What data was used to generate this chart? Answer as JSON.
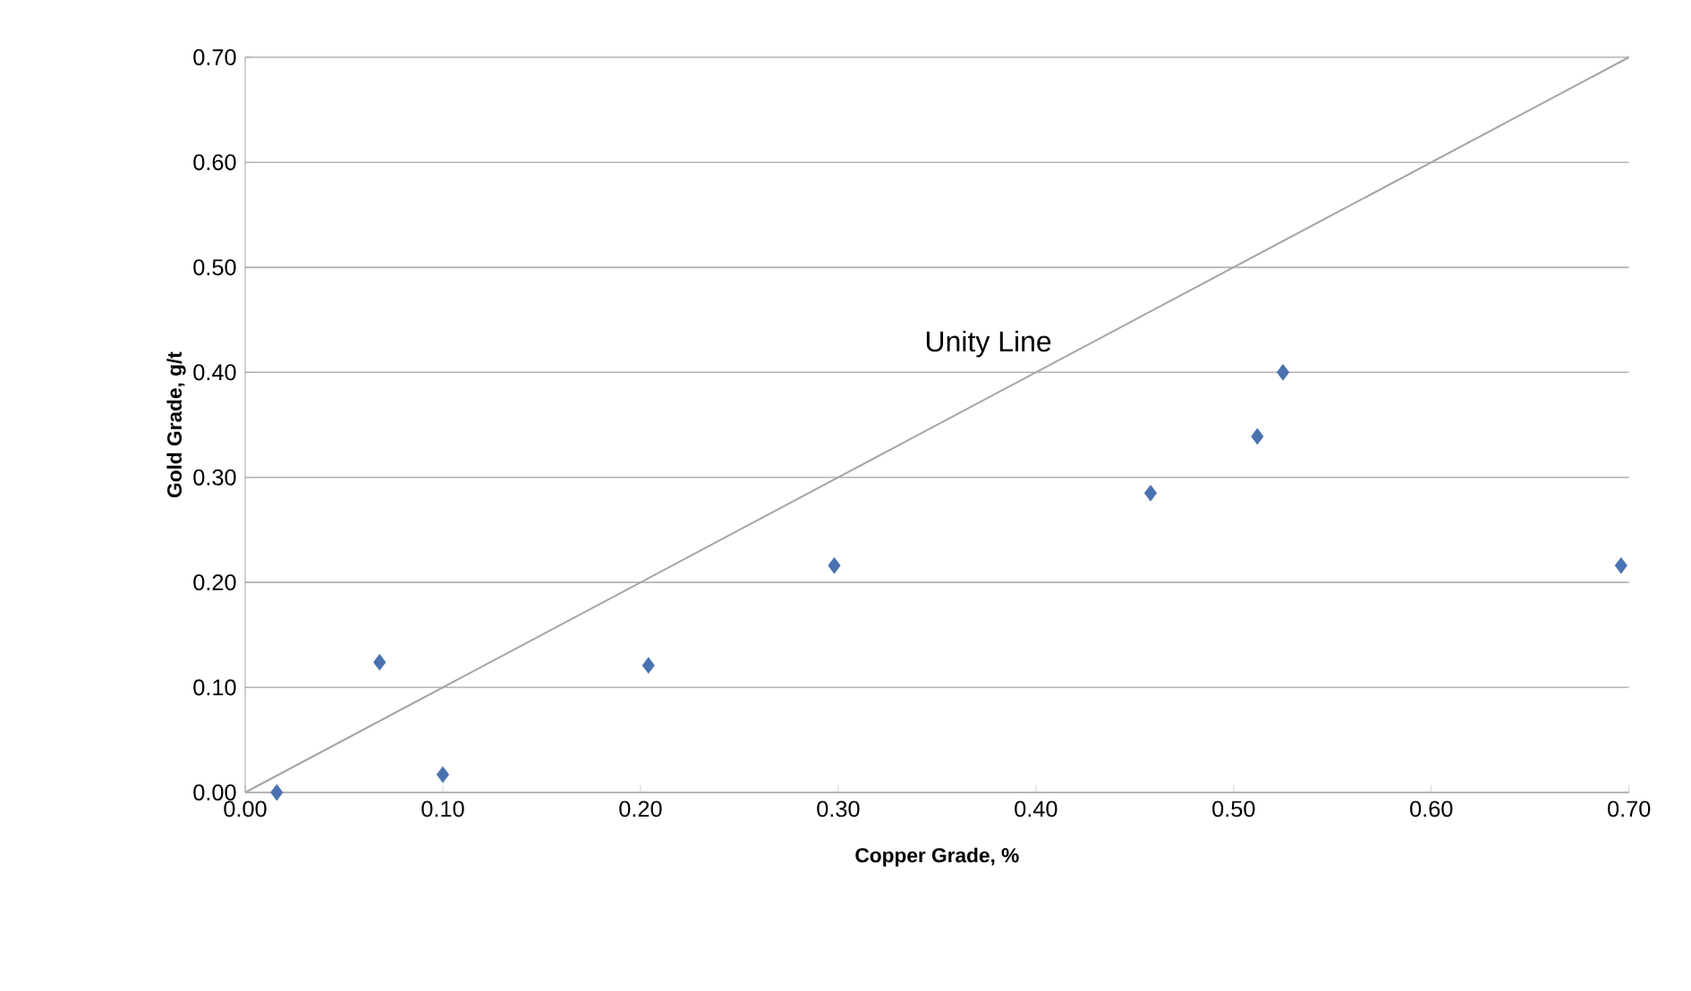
{
  "chart_data": {
    "type": "scatter",
    "xlabel": "Copper Grade, %",
    "ylabel": "Gold Grade, g/t",
    "xlim": [
      0,
      0.7
    ],
    "ylim": [
      0,
      0.7
    ],
    "xticks": [
      {
        "value": 0,
        "label": "0.00"
      },
      {
        "value": 0.1,
        "label": "0.10"
      },
      {
        "value": 0.2,
        "label": "0.20"
      },
      {
        "value": 0.3,
        "label": "0.30"
      },
      {
        "value": 0.4,
        "label": "0.40"
      },
      {
        "value": 0.5,
        "label": "0.50"
      },
      {
        "value": 0.6,
        "label": "0.60"
      },
      {
        "value": 0.7,
        "label": "0.70"
      }
    ],
    "yticks": [
      {
        "value": 0,
        "label": "0.00"
      },
      {
        "value": 0.1,
        "label": "0.10"
      },
      {
        "value": 0.2,
        "label": "0.20"
      },
      {
        "value": 0.3,
        "label": "0.30"
      },
      {
        "value": 0.4,
        "label": "0.40"
      },
      {
        "value": 0.5,
        "label": "0.50"
      },
      {
        "value": 0.6,
        "label": "0.60"
      },
      {
        "value": 0.7,
        "label": "0.70"
      }
    ],
    "grid": "y",
    "series": [
      {
        "marker": "diamond",
        "color": "#4a72b0",
        "x": [
          0.016,
          0.068,
          0.1,
          0.204,
          0.298,
          0.458,
          0.512,
          0.525,
          0.696
        ],
        "values": [
          0,
          0.124,
          0.017,
          0.121,
          0.216,
          0.285,
          0.339,
          0.4,
          0.216
        ]
      },
      {
        "type": "line",
        "color": "#a6a6a6",
        "x": [
          0,
          0.7
        ],
        "values": [
          0,
          0.7
        ]
      }
    ],
    "annotations": [
      "Unity Line"
    ]
  }
}
